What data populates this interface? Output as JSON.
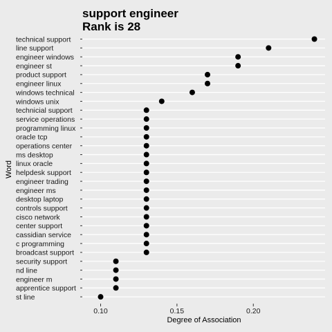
{
  "chart_data": {
    "type": "scatter",
    "title": "support engineer",
    "subtitle": "Rank is 28",
    "xlabel": "Degree of Association",
    "ylabel": "Word",
    "xlim": [
      0.088,
      0.247
    ],
    "xticks": [
      0.1,
      0.15,
      0.2
    ],
    "xtick_labels": [
      "0.10",
      "0.15",
      "0.20"
    ],
    "grid": true,
    "point_color": "#000000",
    "categories": [
      "technical support",
      "line support",
      "engineer windows",
      "engineer st",
      "product support",
      "engineer linux",
      "windows technical",
      "windows unix",
      "technicial support",
      "service operations",
      "programming linux",
      "oracle tcp",
      "operations center",
      "ms desktop",
      "linux oracle",
      "helpdesk support",
      "engineer trading",
      "engineer ms",
      "desktop laptop",
      "controls support",
      "cisco network",
      "center support",
      "cassidian service",
      "c programming",
      "broadcast support",
      "security support",
      "nd line",
      "engineer m",
      "apprentice support",
      "st line"
    ],
    "values": [
      0.24,
      0.21,
      0.19,
      0.19,
      0.17,
      0.17,
      0.16,
      0.14,
      0.13,
      0.13,
      0.13,
      0.13,
      0.13,
      0.13,
      0.13,
      0.13,
      0.13,
      0.13,
      0.13,
      0.13,
      0.13,
      0.13,
      0.13,
      0.13,
      0.13,
      0.11,
      0.11,
      0.11,
      0.11,
      0.1
    ]
  }
}
